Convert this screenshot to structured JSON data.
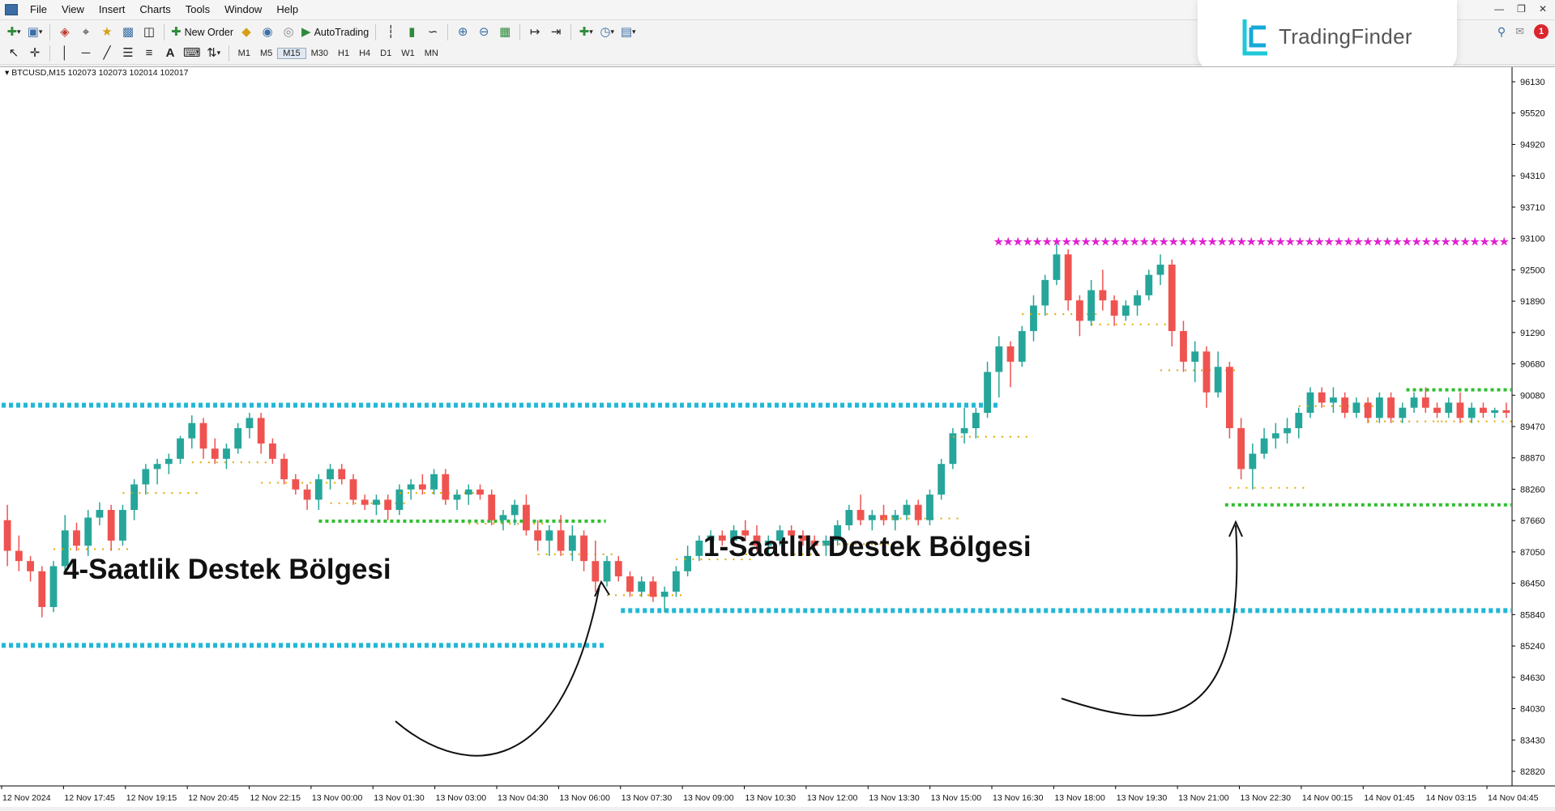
{
  "menu": {
    "items": [
      "File",
      "View",
      "Insert",
      "Charts",
      "Tools",
      "Window",
      "Help"
    ]
  },
  "toolbar": {
    "new_order_label": "New Order",
    "auto_trading_label": "AutoTrading"
  },
  "timeframes": [
    "M1",
    "M5",
    "M15",
    "M30",
    "H1",
    "H4",
    "D1",
    "W1",
    "MN"
  ],
  "logo": {
    "text": "TradingFinder"
  },
  "notifications": {
    "count": "1"
  },
  "chart": {
    "title": "▾ BTCUSD,M15  102073 102073 102014 102017",
    "price_labels": [
      "96130",
      "95520",
      "94920",
      "94310",
      "93710",
      "93100",
      "92500",
      "91890",
      "91290",
      "90680",
      "90080",
      "89470",
      "88870",
      "88260",
      "87660",
      "87050",
      "86450",
      "85840",
      "85240",
      "84630",
      "84030",
      "83430",
      "82820"
    ],
    "time_labels": [
      "12 Nov 2024",
      "12 Nov 17:45",
      "12 Nov 19:15",
      "12 Nov 20:45",
      "12 Nov 22:15",
      "13 Nov 00:00",
      "13 Nov 01:30",
      "13 Nov 03:00",
      "13 Nov 04:30",
      "13 Nov 06:00",
      "13 Nov 07:30",
      "13 Nov 09:00",
      "13 Nov 10:30",
      "13 Nov 12:00",
      "13 Nov 13:30",
      "13 Nov 15:00",
      "13 Nov 16:30",
      "13 Nov 18:00",
      "13 Nov 19:30",
      "13 Nov 21:00",
      "13 Nov 22:30",
      "14 Nov 00:15",
      "14 Nov 01:45",
      "14 Nov 03:15",
      "14 Nov 04:45"
    ],
    "annotations": {
      "left": "4-Saatlik Destek Bölgesi",
      "right": "1-Saatlik Destek Bölgesi"
    },
    "colors": {
      "bull": "#26a69a",
      "bear": "#ef5350",
      "h4_support": "#22b8d6",
      "h1_support": "#2fbf2f",
      "resistance": "#e020d0",
      "minor": "#e0a800"
    }
  },
  "chart_data": {
    "type": "candlestick",
    "title": "BTCUSD,M15",
    "ylim": [
      82500,
      96500
    ],
    "support_zones": [
      {
        "name": "4-Saatlik Destek Bölgesi",
        "price": 85250
      },
      {
        "name": "1-Saatlik Destek Bölgesi",
        "price": 85930
      }
    ],
    "levels": [
      {
        "style": "h4",
        "price": 89950,
        "x": [
          0,
          0.66
        ]
      },
      {
        "style": "h4",
        "price": 85930,
        "x": [
          0.41,
          1.0
        ]
      },
      {
        "style": "h4",
        "price": 85250,
        "x": [
          0,
          0.4
        ]
      },
      {
        "style": "res",
        "price": 93150,
        "x": [
          0.66,
          1.0
        ]
      },
      {
        "style": "h1",
        "price": 87680,
        "x": [
          0.21,
          0.4
        ]
      },
      {
        "style": "h1",
        "price": 88000,
        "x": [
          0.81,
          1.0
        ]
      },
      {
        "style": "h1",
        "price": 90250,
        "x": [
          0.93,
          1.0
        ]
      }
    ],
    "ohlc": [
      [
        87700,
        88000,
        86800,
        87100
      ],
      [
        87100,
        87400,
        86700,
        86900
      ],
      [
        86900,
        87000,
        86500,
        86700
      ],
      [
        86700,
        86800,
        85800,
        86000
      ],
      [
        86000,
        86900,
        85900,
        86800
      ],
      [
        86800,
        87800,
        86700,
        87500
      ],
      [
        87500,
        87650,
        87100,
        87200
      ],
      [
        87200,
        87900,
        87000,
        87750
      ],
      [
        87750,
        88050,
        87600,
        87900
      ],
      [
        87900,
        88000,
        87100,
        87300
      ],
      [
        87300,
        88000,
        87200,
        87900
      ],
      [
        87900,
        88500,
        87700,
        88400
      ],
      [
        88400,
        88800,
        88200,
        88700
      ],
      [
        88700,
        88900,
        88400,
        88800
      ],
      [
        88800,
        89000,
        88600,
        88900
      ],
      [
        88900,
        89350,
        88800,
        89300
      ],
      [
        89300,
        89750,
        89100,
        89600
      ],
      [
        89600,
        89700,
        88900,
        89100
      ],
      [
        89100,
        89300,
        88800,
        88900
      ],
      [
        88900,
        89200,
        88700,
        89100
      ],
      [
        89100,
        89600,
        89000,
        89500
      ],
      [
        89500,
        89800,
        89300,
        89700
      ],
      [
        89700,
        89800,
        89000,
        89200
      ],
      [
        89200,
        89300,
        88800,
        88900
      ],
      [
        88900,
        89000,
        88400,
        88500
      ],
      [
        88500,
        88600,
        88200,
        88300
      ],
      [
        88300,
        88400,
        87900,
        88100
      ],
      [
        88100,
        88600,
        87900,
        88500
      ],
      [
        88500,
        88800,
        88300,
        88700
      ],
      [
        88700,
        88800,
        88400,
        88500
      ],
      [
        88500,
        88600,
        88000,
        88100
      ],
      [
        88100,
        88200,
        87900,
        88000
      ],
      [
        88000,
        88200,
        87800,
        88100
      ],
      [
        88100,
        88200,
        87700,
        87900
      ],
      [
        87900,
        88400,
        87800,
        88300
      ],
      [
        88300,
        88500,
        88100,
        88400
      ],
      [
        88400,
        88600,
        88200,
        88300
      ],
      [
        88300,
        88700,
        88200,
        88600
      ],
      [
        88600,
        88700,
        88000,
        88100
      ],
      [
        88100,
        88300,
        87900,
        88200
      ],
      [
        88200,
        88400,
        88000,
        88300
      ],
      [
        88300,
        88400,
        88100,
        88200
      ],
      [
        88200,
        88300,
        87600,
        87700
      ],
      [
        87700,
        87900,
        87500,
        87800
      ],
      [
        87800,
        88100,
        87600,
        88000
      ],
      [
        88000,
        88200,
        87400,
        87500
      ],
      [
        87500,
        87700,
        87100,
        87300
      ],
      [
        87300,
        87600,
        87000,
        87500
      ],
      [
        87500,
        87800,
        87000,
        87100
      ],
      [
        87100,
        87600,
        86900,
        87400
      ],
      [
        87400,
        87500,
        86700,
        86900
      ],
      [
        86900,
        87300,
        86300,
        86500
      ],
      [
        86500,
        87000,
        86400,
        86900
      ],
      [
        86900,
        87000,
        86500,
        86600
      ],
      [
        86600,
        86700,
        86200,
        86300
      ],
      [
        86300,
        86600,
        86200,
        86500
      ],
      [
        86500,
        86600,
        86100,
        86200
      ],
      [
        86200,
        86400,
        85900,
        86300
      ],
      [
        86300,
        86800,
        86200,
        86700
      ],
      [
        86700,
        87200,
        86600,
        87000
      ],
      [
        87000,
        87400,
        86900,
        87300
      ],
      [
        87300,
        87500,
        87100,
        87400
      ],
      [
        87400,
        87500,
        87200,
        87300
      ],
      [
        87300,
        87600,
        87200,
        87500
      ],
      [
        87500,
        87700,
        87300,
        87400
      ],
      [
        87400,
        87600,
        87100,
        87200
      ],
      [
        87200,
        87400,
        87000,
        87300
      ],
      [
        87300,
        87600,
        87200,
        87500
      ],
      [
        87500,
        87600,
        87300,
        87400
      ],
      [
        87400,
        87500,
        87200,
        87300
      ],
      [
        87300,
        87400,
        87100,
        87200
      ],
      [
        87200,
        87400,
        87000,
        87300
      ],
      [
        87300,
        87700,
        87200,
        87600
      ],
      [
        87600,
        88000,
        87500,
        87900
      ],
      [
        87900,
        88200,
        87600,
        87700
      ],
      [
        87700,
        87900,
        87500,
        87800
      ],
      [
        87800,
        88000,
        87600,
        87700
      ],
      [
        87700,
        87900,
        87500,
        87800
      ],
      [
        87800,
        88100,
        87700,
        88000
      ],
      [
        88000,
        88100,
        87600,
        87700
      ],
      [
        87700,
        88300,
        87600,
        88200
      ],
      [
        88200,
        88900,
        88100,
        88800
      ],
      [
        88800,
        89500,
        88700,
        89400
      ],
      [
        89400,
        89900,
        89200,
        89500
      ],
      [
        89500,
        89900,
        89300,
        89800
      ],
      [
        89800,
        90800,
        89700,
        90600
      ],
      [
        90600,
        91300,
        90100,
        91100
      ],
      [
        91100,
        91200,
        90300,
        90800
      ],
      [
        90800,
        91500,
        90700,
        91400
      ],
      [
        91400,
        92100,
        91200,
        91900
      ],
      [
        91900,
        92500,
        91700,
        92400
      ],
      [
        92400,
        93100,
        92300,
        92900
      ],
      [
        92900,
        93000,
        91800,
        92000
      ],
      [
        92000,
        92100,
        91300,
        91600
      ],
      [
        91600,
        92400,
        91500,
        92200
      ],
      [
        92200,
        92600,
        91800,
        92000
      ],
      [
        92000,
        92100,
        91500,
        91700
      ],
      [
        91700,
        92000,
        91600,
        91900
      ],
      [
        91900,
        92200,
        91700,
        92100
      ],
      [
        92100,
        92600,
        92000,
        92500
      ],
      [
        92500,
        92900,
        92300,
        92700
      ],
      [
        92700,
        92800,
        91100,
        91400
      ],
      [
        91400,
        91600,
        90600,
        90800
      ],
      [
        90800,
        91200,
        90400,
        91000
      ],
      [
        91000,
        91100,
        89900,
        90200
      ],
      [
        90200,
        91000,
        90100,
        90700
      ],
      [
        90700,
        90800,
        89300,
        89500
      ],
      [
        89500,
        89700,
        88500,
        88700
      ],
      [
        88700,
        89200,
        88300,
        89000
      ],
      [
        89000,
        89500,
        88900,
        89300
      ],
      [
        89300,
        89600,
        89100,
        89400
      ],
      [
        89400,
        89700,
        89200,
        89500
      ],
      [
        89500,
        89900,
        89300,
        89800
      ],
      [
        89800,
        90300,
        89700,
        90200
      ],
      [
        90200,
        90300,
        89900,
        90000
      ],
      [
        90000,
        90300,
        89800,
        90100
      ],
      [
        90100,
        90200,
        89700,
        89800
      ],
      [
        89800,
        90100,
        89700,
        90000
      ],
      [
        90000,
        90100,
        89600,
        89700
      ],
      [
        89700,
        90200,
        89600,
        90100
      ],
      [
        90100,
        90200,
        89600,
        89700
      ],
      [
        89700,
        90000,
        89600,
        89900
      ],
      [
        89900,
        90200,
        89800,
        90100
      ],
      [
        90100,
        90300,
        89800,
        89900
      ],
      [
        89900,
        90000,
        89700,
        89800
      ],
      [
        89800,
        90100,
        89700,
        90000
      ],
      [
        90000,
        90200,
        89600,
        89700
      ],
      [
        89700,
        90000,
        89600,
        89900
      ],
      [
        89900,
        90000,
        89700,
        89800
      ],
      [
        89800,
        89900,
        89700,
        89850
      ],
      [
        89850,
        90000,
        89700,
        89800
      ]
    ]
  }
}
